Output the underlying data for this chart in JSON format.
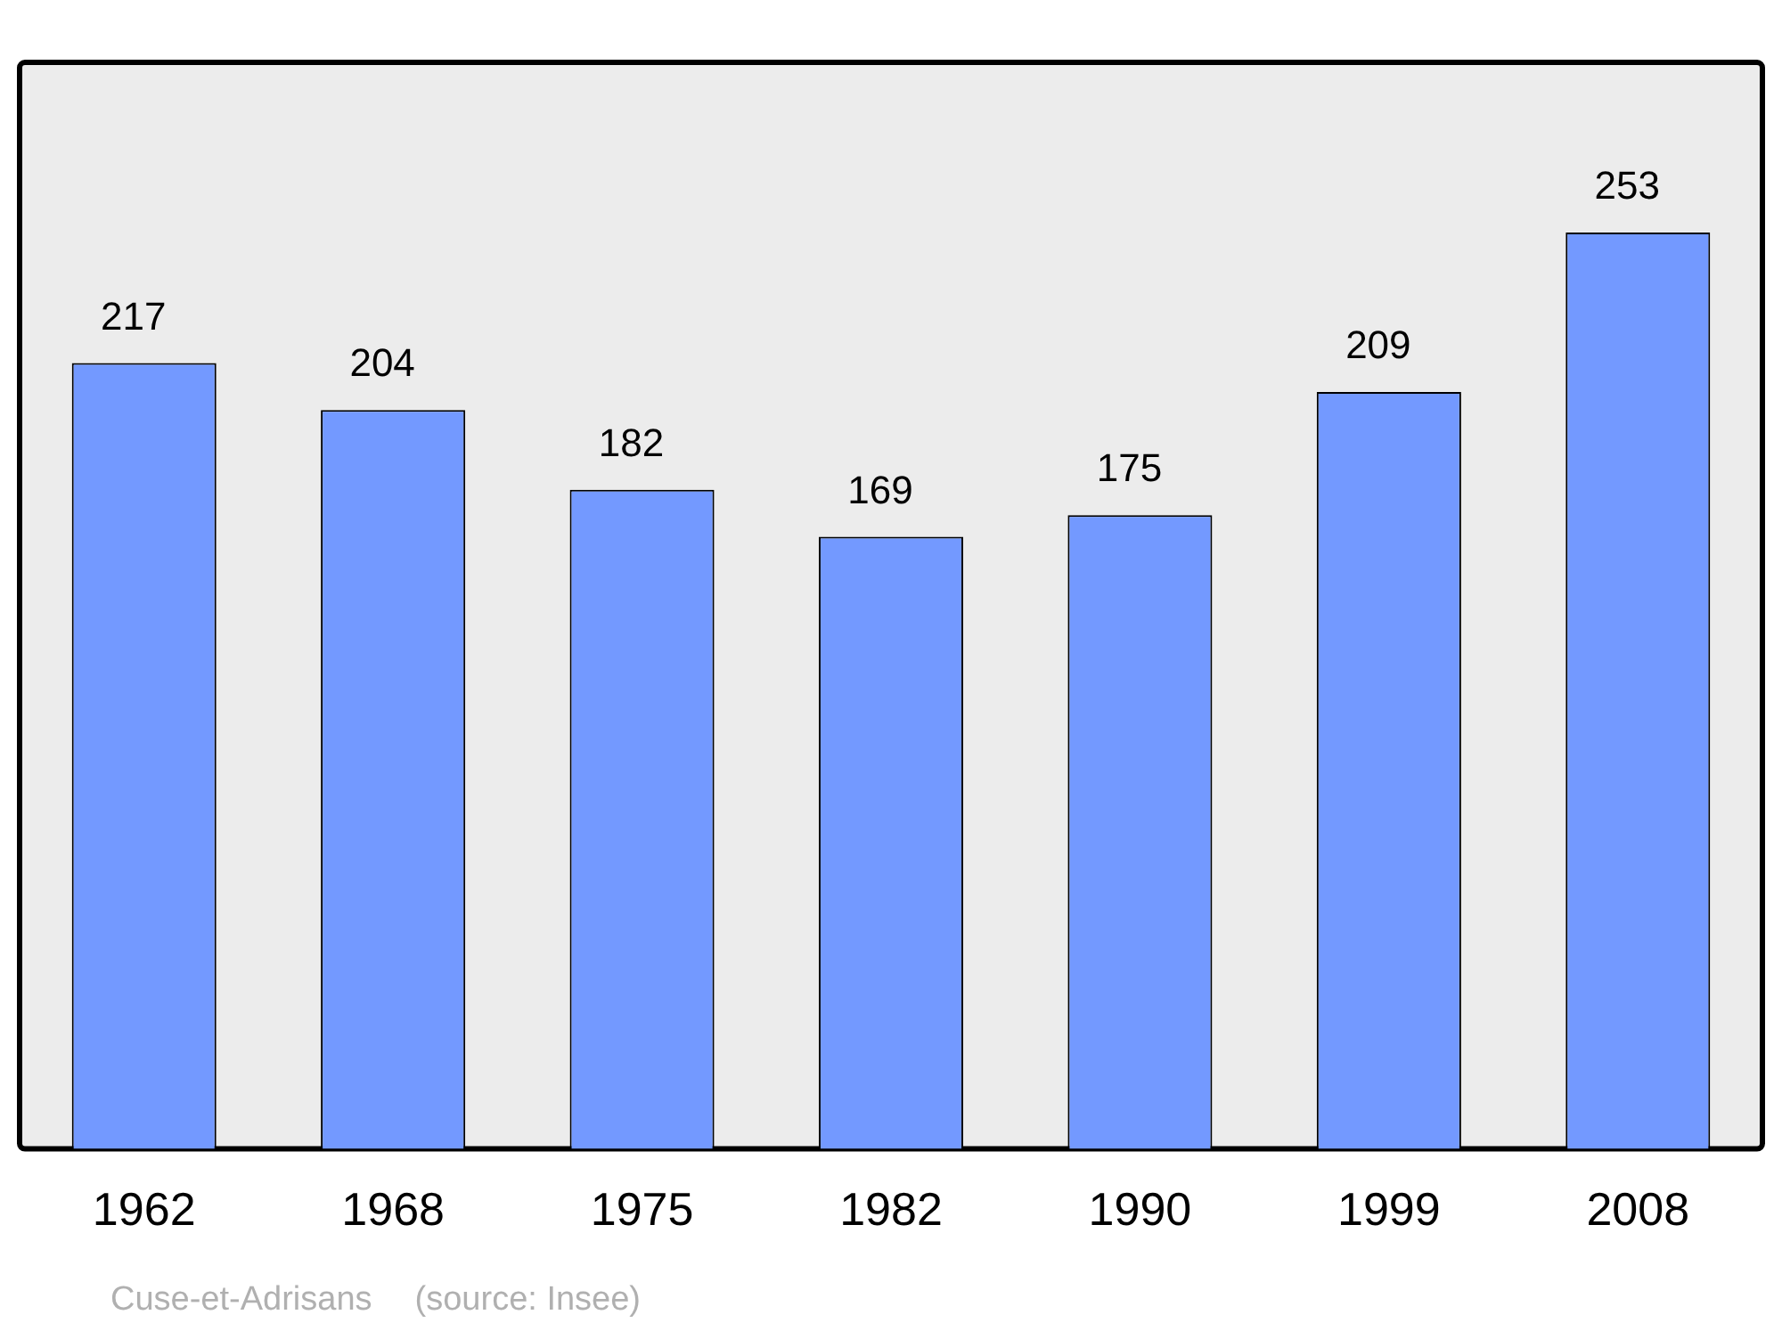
{
  "chart_data": {
    "type": "bar",
    "categories": [
      "1962",
      "1968",
      "1975",
      "1982",
      "1990",
      "1999",
      "2008"
    ],
    "values": [
      217,
      204,
      182,
      169,
      175,
      209,
      253
    ],
    "color": "#7399ff",
    "data_labels": true,
    "grid": false,
    "legend": false,
    "annotations": [
      "Cuse-et-Adrisans",
      "(source: Insee)"
    ]
  }
}
